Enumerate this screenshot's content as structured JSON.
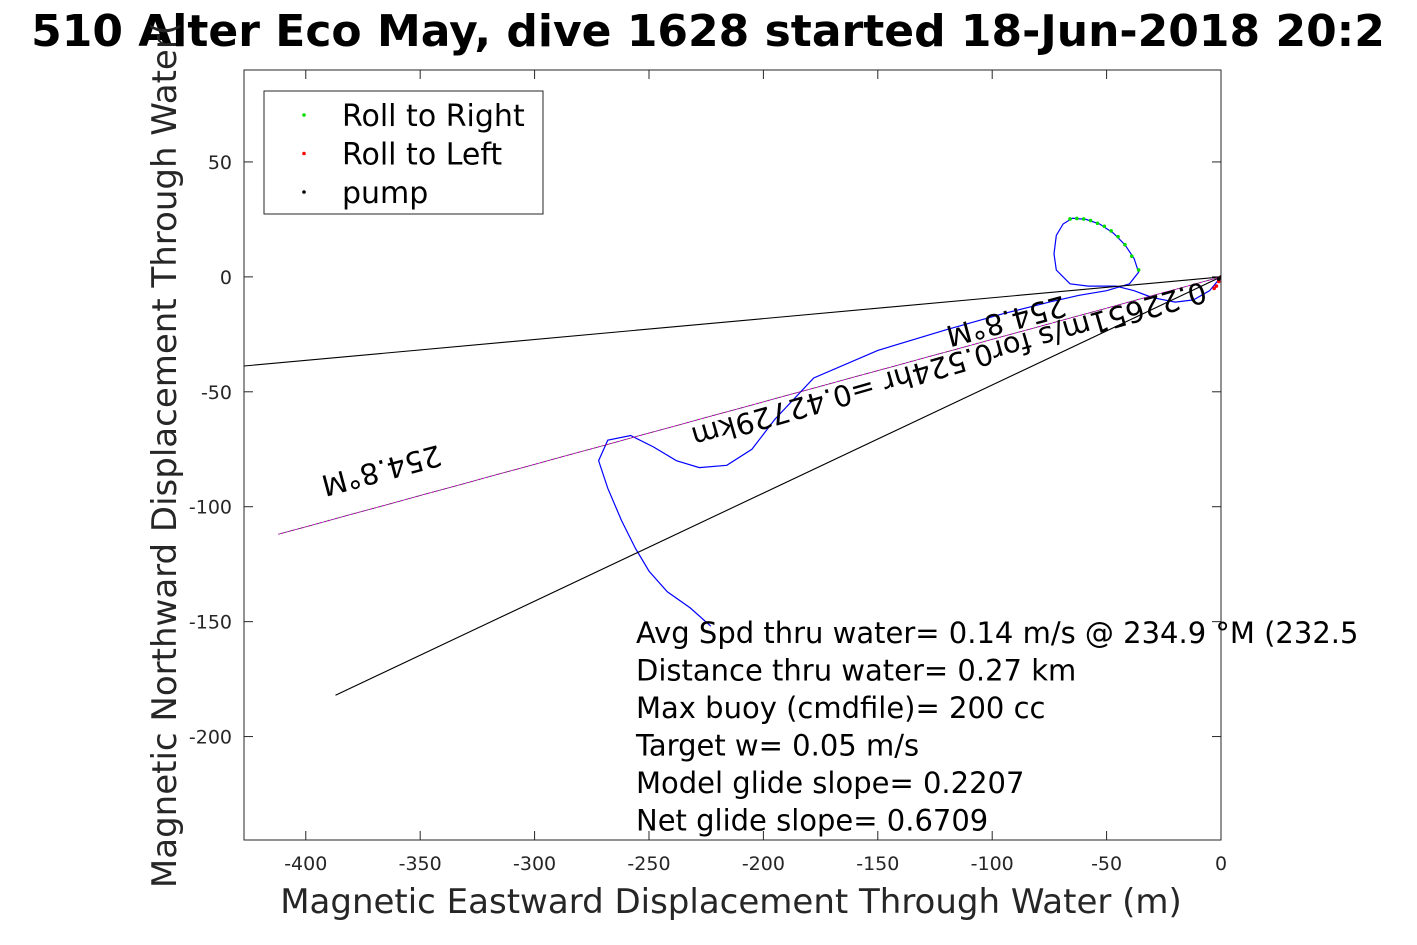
{
  "chart_data": {
    "type": "line",
    "title": "510 Alter Eco May, dive 1628 started 18-Jun-2018 20:2",
    "xlabel": "Magnetic Eastward Displacement Through Water (m)",
    "ylabel": "Magnetic Northward Displacement Through Water(",
    "xlim": [
      -427,
      0
    ],
    "ylim": [
      -245,
      90
    ],
    "xticks": [
      -400,
      -350,
      -300,
      -250,
      -200,
      -150,
      -100,
      -50,
      0
    ],
    "yticks": [
      50,
      0,
      -50,
      -100,
      -150,
      -200
    ],
    "xtick_labels": [
      "-400",
      "-350",
      "-300",
      "-250",
      "-200",
      "-150",
      "-100",
      "-50",
      "0"
    ],
    "ytick_labels": [
      "50",
      "0",
      "-50",
      "-100",
      "-150",
      "-200"
    ],
    "grid": false,
    "box": true,
    "legend_position": "top-left",
    "legend": [
      {
        "label": "Roll to Right",
        "color": "#00dd00"
      },
      {
        "label": "Roll to Left",
        "color": "#ff0000"
      },
      {
        "label": "pump",
        "color": "#000000"
      }
    ],
    "series": [
      {
        "kind": "track",
        "color": "#0000ff",
        "points": [
          [
            0,
            0
          ],
          [
            -5,
            -6
          ],
          [
            -12,
            -10
          ],
          [
            -20,
            -11
          ],
          [
            -30,
            -9
          ],
          [
            -38,
            -6
          ],
          [
            -46,
            -4
          ],
          [
            -58,
            -4
          ],
          [
            -66,
            -3
          ],
          [
            -72,
            3
          ],
          [
            -73,
            10
          ],
          [
            -72,
            18
          ],
          [
            -69,
            23
          ],
          [
            -65,
            25.5
          ],
          [
            -59,
            25
          ],
          [
            -53,
            23
          ],
          [
            -47,
            19
          ],
          [
            -42,
            14
          ],
          [
            -38,
            8
          ],
          [
            -36,
            2
          ],
          [
            -40,
            -3
          ],
          [
            -50,
            -6
          ],
          [
            -62,
            -8
          ],
          [
            -75,
            -11
          ],
          [
            -95,
            -16
          ],
          [
            -120,
            -23
          ],
          [
            -150,
            -32
          ],
          [
            -178,
            -44
          ],
          [
            -195,
            -62
          ],
          [
            -205,
            -75
          ],
          [
            -216,
            -82
          ],
          [
            -228,
            -83
          ],
          [
            -238,
            -80
          ],
          [
            -248,
            -74
          ],
          [
            -258,
            -69
          ],
          [
            -268,
            -71
          ],
          [
            -272,
            -80
          ],
          [
            -268,
            -92
          ],
          [
            -262,
            -106
          ],
          [
            -256,
            -118
          ],
          [
            -250,
            -128
          ],
          [
            -242,
            -137
          ],
          [
            -232,
            -144
          ],
          [
            -223,
            -152
          ]
        ]
      },
      {
        "kind": "line",
        "color": "#000000",
        "points": [
          [
            0,
            0
          ],
          [
            -427,
            -38.8
          ]
        ]
      },
      {
        "kind": "line",
        "color": "#000000",
        "points": [
          [
            0,
            0
          ],
          [
            -387,
            -182
          ]
        ]
      },
      {
        "kind": "line",
        "color": "#cc00cc",
        "points": [
          [
            0,
            0
          ],
          [
            -412,
            -112
          ]
        ]
      },
      {
        "kind": "scatter",
        "name": "Roll to Right",
        "color": "#00dd00",
        "points": [
          [
            -66,
            25.2
          ],
          [
            -63,
            25.4
          ],
          [
            -60,
            25.2
          ],
          [
            -57,
            24.5
          ],
          [
            -54,
            23.3
          ],
          [
            -51,
            22
          ],
          [
            -48,
            20
          ],
          [
            -45,
            17.5
          ],
          [
            -42,
            14
          ],
          [
            -39,
            9
          ],
          [
            -36,
            3
          ]
        ]
      },
      {
        "kind": "scatter",
        "name": "Roll to Left",
        "color": "#ff0000",
        "points": [
          [
            0,
            0
          ],
          [
            -1,
            -2
          ],
          [
            -2,
            -4
          ],
          [
            -3,
            -5
          ]
        ]
      },
      {
        "kind": "scatter",
        "name": "pump",
        "color": "#000000",
        "points": [
          [
            0,
            0
          ],
          [
            -1,
            -1
          ]
        ]
      }
    ],
    "annotations": [
      {
        "text": "254.8°M",
        "x": -368,
        "y": -80,
        "rotate": 165
      },
      {
        "text": "254.8°M",
        "x": -95,
        "y": -15,
        "rotate": 165
      },
      {
        "text": "0.22651m/s for0.524hr =0.42729km",
        "x": -120,
        "y": -34,
        "rotate": 164
      }
    ],
    "stats_box": [
      "Avg Spd thru water=  0.14 m/s @ 234.9 °M (232.5",
      "Distance thru water=  0.27 km",
      "Max buoy (cmdfile)= 200 cc",
      "Target w= 0.05 m/s",
      "Model glide slope= 0.2207",
      "Net glide slope= 0.6709"
    ]
  }
}
